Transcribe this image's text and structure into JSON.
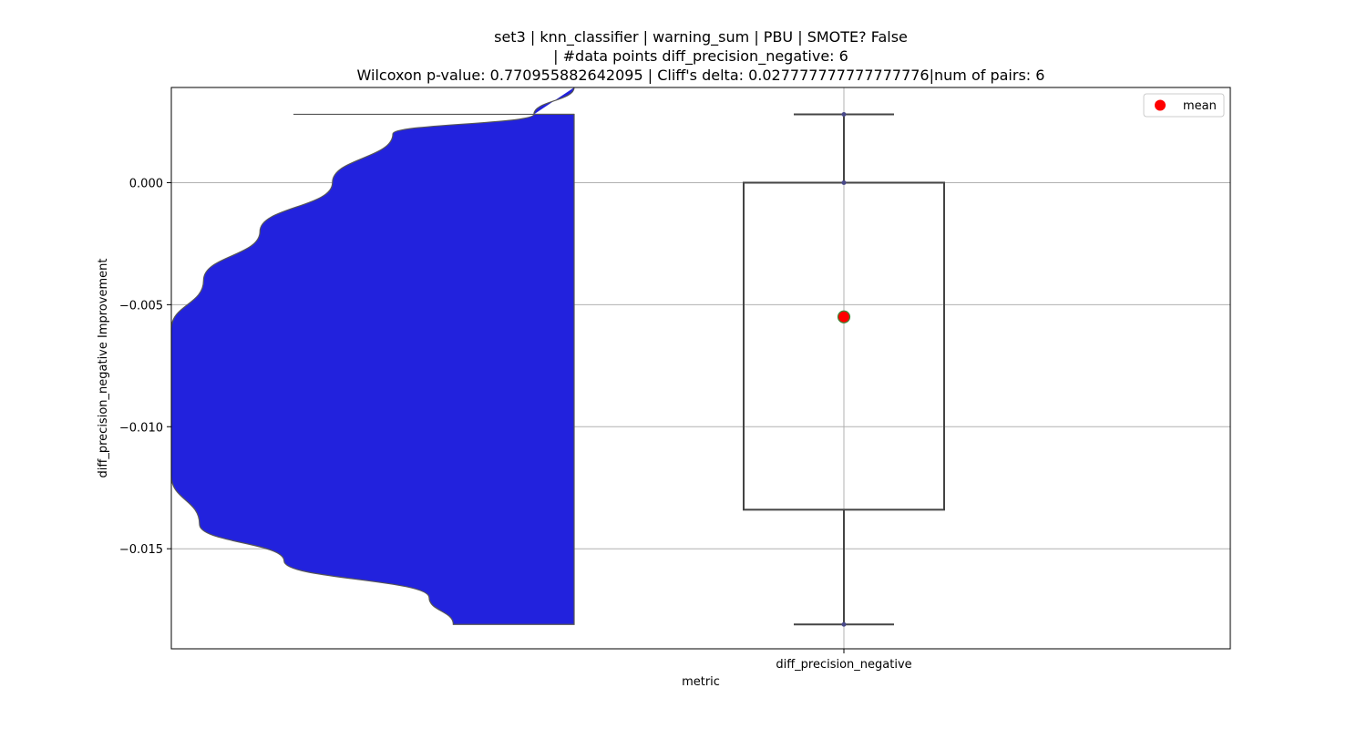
{
  "chart_data": {
    "type": "violin+box",
    "title_lines": [
      "set3 | knn_classifier | warning_sum | PBU | SMOTE? False",
      "| #data points diff_precision_negative: 6",
      "Wilcoxon p-value: 0.770955882642095 | Cliff's delta: 0.027777777777777776|num of pairs: 6"
    ],
    "xlabel": "metric",
    "ylabel": "diff_precision_negative Improvement",
    "categories": [
      "diff_precision_negative"
    ],
    "ylim": [
      -0.0191,
      0.0039
    ],
    "yticks": [
      0.0,
      -0.005,
      -0.01,
      -0.015
    ],
    "ytick_labels": [
      "0.000",
      "−0.005",
      "−0.010",
      "−0.015"
    ],
    "grid": true,
    "box": {
      "min": -0.0181,
      "q1": -0.0134,
      "median": 0.0,
      "q3": 0.0,
      "max": 0.0028,
      "mean": -0.0055
    },
    "points": [
      0.0028,
      0.0,
      -0.0181
    ],
    "violin": {
      "color": "#2222dd",
      "cut_top": 0.0028,
      "cut_bottom": -0.0181,
      "profile": [
        [
          0.0039,
          0.0
        ],
        [
          0.0028,
          0.1
        ],
        [
          0.002,
          0.45
        ],
        [
          0.0,
          0.6
        ],
        [
          -0.002,
          0.78
        ],
        [
          -0.004,
          0.92
        ],
        [
          -0.006,
          1.0
        ],
        [
          -0.008,
          1.0
        ],
        [
          -0.01,
          1.0
        ],
        [
          -0.012,
          1.0
        ],
        [
          -0.014,
          0.93
        ],
        [
          -0.0155,
          0.72
        ],
        [
          -0.017,
          0.36
        ],
        [
          -0.0181,
          0.3
        ]
      ]
    },
    "legend": {
      "position": "top-right",
      "entries": [
        "mean"
      ]
    },
    "colors": {
      "mean_fill": "#ff0000",
      "mean_edge": "#3a8a3a",
      "box_edge": "#444444",
      "violin_edge": "#555555",
      "grid": "#b0b0b0"
    }
  }
}
